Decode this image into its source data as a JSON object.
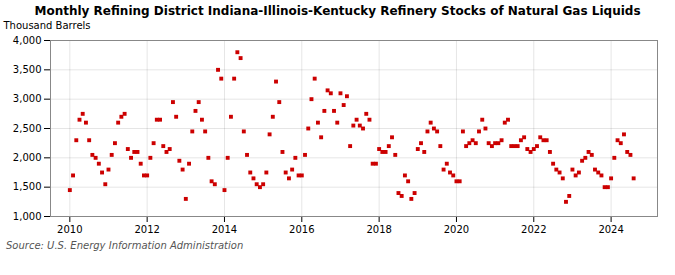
{
  "chart_data": {
    "type": "scatter",
    "title": "Monthly Refining District Indiana-Illinois-Kentucky Refinery Stocks of Natural Gas Liquids",
    "ylabel": "Thousand Barrels",
    "source": "Source: U.S. Energy Information Administration",
    "color": "#cc0000",
    "marker": "square",
    "grid": true,
    "xlim": [
      2009.5,
      2025.2
    ],
    "xticks": [
      2010,
      2012,
      2014,
      2016,
      2018,
      2020,
      2022,
      2024
    ],
    "ylim": [
      1000,
      4000
    ],
    "yticks": [
      {
        "value": 1000,
        "label": "1,000"
      },
      {
        "value": 1500,
        "label": "1,500"
      },
      {
        "value": 2000,
        "label": "2,000"
      },
      {
        "value": 2500,
        "label": "2,500"
      },
      {
        "value": 3000,
        "label": "3,000"
      },
      {
        "value": 3500,
        "label": "3,500"
      },
      {
        "value": 4000,
        "label": "4,000"
      }
    ],
    "x": [
      2010.0,
      2010.083,
      2010.167,
      2010.25,
      2010.333,
      2010.417,
      2010.5,
      2010.583,
      2010.667,
      2010.75,
      2010.833,
      2010.917,
      2011.0,
      2011.083,
      2011.167,
      2011.25,
      2011.333,
      2011.417,
      2011.5,
      2011.583,
      2011.667,
      2011.75,
      2011.833,
      2011.917,
      2012.0,
      2012.083,
      2012.167,
      2012.25,
      2012.333,
      2012.417,
      2012.5,
      2012.583,
      2012.667,
      2012.75,
      2012.833,
      2012.917,
      2013.0,
      2013.083,
      2013.167,
      2013.25,
      2013.333,
      2013.417,
      2013.5,
      2013.583,
      2013.667,
      2013.75,
      2013.833,
      2013.917,
      2014.0,
      2014.083,
      2014.167,
      2014.25,
      2014.333,
      2014.417,
      2014.5,
      2014.583,
      2014.667,
      2014.75,
      2014.833,
      2014.917,
      2015.0,
      2015.083,
      2015.167,
      2015.25,
      2015.333,
      2015.417,
      2015.5,
      2015.583,
      2015.667,
      2015.75,
      2015.833,
      2015.917,
      2016.0,
      2016.083,
      2016.167,
      2016.25,
      2016.333,
      2016.417,
      2016.5,
      2016.583,
      2016.667,
      2016.75,
      2016.833,
      2016.917,
      2017.0,
      2017.083,
      2017.167,
      2017.25,
      2017.333,
      2017.417,
      2017.5,
      2017.583,
      2017.667,
      2017.75,
      2017.833,
      2017.917,
      2018.0,
      2018.083,
      2018.167,
      2018.25,
      2018.333,
      2018.417,
      2018.5,
      2018.583,
      2018.667,
      2018.75,
      2018.833,
      2018.917,
      2019.0,
      2019.083,
      2019.167,
      2019.25,
      2019.333,
      2019.417,
      2019.5,
      2019.583,
      2019.667,
      2019.75,
      2019.833,
      2019.917,
      2020.0,
      2020.083,
      2020.167,
      2020.25,
      2020.333,
      2020.417,
      2020.5,
      2020.583,
      2020.667,
      2020.75,
      2020.833,
      2020.917,
      2021.0,
      2021.083,
      2021.167,
      2021.25,
      2021.333,
      2021.417,
      2021.5,
      2021.583,
      2021.667,
      2021.75,
      2021.833,
      2021.917,
      2022.0,
      2022.083,
      2022.167,
      2022.25,
      2022.333,
      2022.417,
      2022.5,
      2022.583,
      2022.667,
      2022.75,
      2022.833,
      2022.917,
      2023.0,
      2023.083,
      2023.167,
      2023.25,
      2023.333,
      2023.417,
      2023.5,
      2023.583,
      2023.667,
      2023.75,
      2023.833,
      2023.917,
      2024.0,
      2024.083,
      2024.167,
      2024.25,
      2024.333,
      2024.417,
      2024.5,
      2024.583
    ],
    "values": [
      1450,
      1700,
      2300,
      2650,
      2750,
      2600,
      2300,
      2050,
      2000,
      1900,
      1750,
      1550,
      1800,
      2050,
      2250,
      2600,
      2700,
      2750,
      2150,
      2000,
      2100,
      2100,
      1900,
      1700,
      1700,
      2000,
      2250,
      2650,
      2650,
      2200,
      2100,
      2150,
      2950,
      2700,
      1950,
      1800,
      1300,
      1900,
      2450,
      2800,
      2950,
      2650,
      2450,
      2000,
      1600,
      1550,
      3500,
      3350,
      1450,
      2000,
      2700,
      3350,
      3800,
      3700,
      2450,
      2050,
      1750,
      1650,
      1550,
      1500,
      1550,
      1750,
      2400,
      2700,
      3300,
      2950,
      2100,
      1750,
      1650,
      1800,
      2000,
      1700,
      1700,
      2050,
      2500,
      3000,
      3350,
      2600,
      2350,
      2800,
      3150,
      3100,
      2800,
      2600,
      3100,
      2900,
      3050,
      2200,
      2550,
      2650,
      2550,
      2500,
      2750,
      2650,
      1900,
      1900,
      2150,
      2100,
      2100,
      2200,
      2350,
      2050,
      1400,
      1350,
      1700,
      1600,
      1300,
      1400,
      2150,
      2250,
      2100,
      2450,
      2600,
      2500,
      2450,
      2200,
      1800,
      1900,
      1750,
      1700,
      1600,
      1600,
      2450,
      2200,
      2250,
      2300,
      2250,
      2450,
      2650,
      2500,
      2250,
      2200,
      2250,
      2250,
      2300,
      2600,
      2650,
      2200,
      2200,
      2200,
      2300,
      2350,
      2150,
      2100,
      2150,
      2200,
      2350,
      2300,
      2300,
      2100,
      1900,
      1800,
      1750,
      1650,
      1250,
      1350,
      1800,
      1700,
      1750,
      1950,
      2000,
      2100,
      2050,
      1800,
      1750,
      1700,
      1500,
      1500,
      1650,
      2000,
      2300,
      2250,
      2400,
      2100,
      2050,
      1650
    ]
  }
}
